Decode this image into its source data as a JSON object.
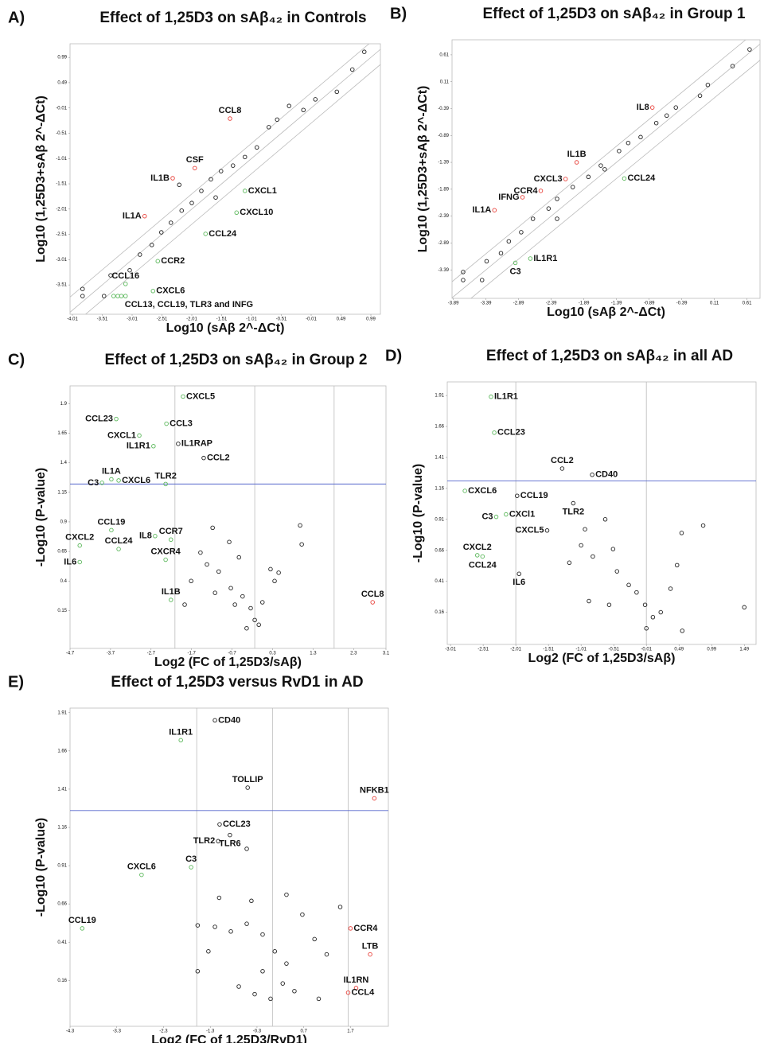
{
  "chart_data": [
    {
      "type": "scatter",
      "label": "A)",
      "title": "Effect of 1,25D3 on sAβ₄₂ in Controls",
      "xlabel": "Log10 (sAβ 2^-ΔCt)",
      "ylabel": "Log10 (1,25D3+sAβ 2^-ΔCt)",
      "xlim": [
        -4.05,
        1.15
      ],
      "ylim": [
        -4.09,
        1.26
      ],
      "xticks": [
        -4.01,
        -3.51,
        -3.01,
        -2.51,
        -2.01,
        -1.51,
        -1.01,
        -0.51,
        -0.01,
        0.49,
        0.99
      ],
      "yticks": [
        -3.51,
        -3.01,
        -2.51,
        -2.01,
        -1.51,
        -1.01,
        -0.51,
        -0.01,
        0.49,
        0.99
      ],
      "diagonals": [
        -0.3,
        0,
        0.3
      ],
      "series": [
        {
          "color": "#222222",
          "x": [
            0.88,
            0.68,
            0.42,
            0.06,
            -0.14,
            -0.38,
            -0.58,
            -0.72,
            -0.92,
            -1.12,
            -1.32,
            -1.52,
            -1.69,
            -1.85,
            -2.01,
            -2.18,
            -2.36,
            -2.52,
            -2.68,
            -2.88,
            -3.05,
            -3.37,
            -3.48,
            -3.84,
            -3.84,
            -1.61,
            -2.22
          ],
          "values": [
            1.1,
            0.75,
            0.31,
            0.16,
            -0.05,
            0.03,
            -0.24,
            -0.39,
            -0.79,
            -0.98,
            -1.15,
            -1.26,
            -1.42,
            -1.65,
            -1.89,
            -2.04,
            -2.28,
            -2.47,
            -2.72,
            -2.91,
            -3.22,
            -3.32,
            -3.73,
            -3.59,
            -3.73,
            -1.78,
            -1.53
          ]
        },
        {
          "color": "#e8423b",
          "x": [
            -1.37,
            -1.96,
            -2.33,
            -2.8
          ],
          "values": [
            -0.22,
            -1.2,
            -1.4,
            -2.15
          ],
          "labels": [
            "CCL8",
            "CSF",
            "IL1B",
            "IL1A"
          ]
        },
        {
          "color": "#5cb85c",
          "x": [
            -1.12,
            -1.26,
            -1.78,
            -2.58,
            -3.12,
            -2.66,
            -3.32,
            -3.25,
            -3.19,
            -3.12
          ],
          "values": [
            -1.65,
            -2.08,
            -2.5,
            -3.04,
            -3.49,
            -3.63,
            -3.73,
            -3.73,
            -3.73,
            -3.73
          ],
          "labels": [
            "CXCL1",
            "CXCL10",
            "CCL24",
            "CCR2",
            "CCL16",
            "CXCL6",
            "CCL13, CCL19, TLR3 and INFG",
            null,
            null,
            null
          ]
        }
      ]
    },
    {
      "type": "scatter",
      "label": "B)",
      "title": "Effect of 1,25D3 on sAβ₄₂ in Group 1",
      "xlabel": "Log10 (sAβ 2^-ΔCt)",
      "ylabel": "Log10 (1,25D3+sAβ 2^-ΔCt)",
      "xlim": [
        -3.91,
        0.81
      ],
      "ylim": [
        -3.92,
        0.89
      ],
      "xticks": [
        -3.89,
        -3.39,
        -2.89,
        -2.39,
        -1.89,
        -1.39,
        -0.89,
        -0.39,
        0.11,
        0.61
      ],
      "yticks": [
        -3.39,
        -2.89,
        -2.39,
        -1.89,
        -1.39,
        -0.89,
        -0.39,
        0.11,
        0.61
      ],
      "diagonals": [
        -0.3,
        0,
        0.3
      ],
      "series": [
        {
          "color": "#222222",
          "x": [
            0.65,
            0.39,
            0.01,
            -0.11,
            -0.48,
            -0.62,
            -0.78,
            -1.02,
            -1.21,
            -1.35,
            -1.63,
            -1.82,
            -2.06,
            -2.3,
            -2.43,
            -2.67,
            -2.85,
            -3.04,
            -3.16,
            -3.38,
            -3.74,
            -3.74,
            -3.45,
            -1.57,
            -2.3
          ],
          "values": [
            0.71,
            0.4,
            0.05,
            -0.15,
            -0.37,
            -0.52,
            -0.66,
            -0.92,
            -1.03,
            -1.18,
            -1.45,
            -1.66,
            -1.85,
            -2.07,
            -2.25,
            -2.44,
            -2.69,
            -2.86,
            -3.08,
            -3.23,
            -3.43,
            -3.58,
            -3.58,
            -1.52,
            -2.44
          ]
        },
        {
          "color": "#e8423b",
          "x": [
            -0.84,
            -2.0,
            -2.17,
            -2.55,
            -2.83,
            -3.26
          ],
          "values": [
            -0.37,
            -1.39,
            -1.7,
            -1.92,
            -2.04,
            -2.28
          ],
          "labels": [
            "IL8",
            "IL1B",
            "CXCL3",
            "CCR4",
            "IFNG",
            "IL1A"
          ]
        },
        {
          "color": "#5cb85c",
          "x": [
            -1.27,
            -2.71,
            -2.94
          ],
          "values": [
            -1.69,
            -3.18,
            -3.26
          ],
          "labels": [
            "CCL24",
            "IL1R1",
            "C3"
          ]
        }
      ]
    },
    {
      "type": "scatter",
      "label": "C)",
      "title": "Effect of 1,25D3 on sAβ₄₂ in Group 2",
      "xlabel": "Log2 (FC of 1,25D3/sAβ)",
      "ylabel": "-Log10 (P-value)",
      "xlim": [
        -4.7,
        3.1
      ],
      "ylim": [
        -0.17,
        2.05
      ],
      "xticks": [
        -4.7,
        -3.7,
        -2.7,
        -1.7,
        -0.7,
        0.3,
        1.3,
        2.3,
        3.1
      ],
      "yticks": [
        0.15,
        0.4,
        0.65,
        0.9,
        1.15,
        1.4,
        1.65,
        1.9
      ],
      "vlines": [
        -2.11,
        -0.14,
        1.82
      ],
      "hline": 1.22,
      "series": [
        {
          "color": "#222222",
          "x": [
            -1.18,
            -1.48,
            -0.77,
            -1.32,
            -1.03,
            -0.53,
            -0.73,
            -0.44,
            -0.24,
            -0.14,
            0.05,
            0.35,
            0.45,
            0.98,
            1.02,
            -1.71,
            -1.87,
            -1.12,
            -0.63,
            -0.34,
            -0.04,
            0.25
          ],
          "values": [
            0.85,
            0.64,
            0.73,
            0.54,
            0.48,
            0.6,
            0.34,
            0.27,
            0.17,
            0.07,
            0.22,
            0.4,
            0.47,
            0.87,
            0.71,
            0.4,
            0.2,
            0.3,
            0.2,
            0.0,
            0.03,
            0.5
          ]
        },
        {
          "color": "#e8423b",
          "x": [
            2.77
          ],
          "values": [
            0.22
          ],
          "labels": [
            "CCL8"
          ]
        },
        {
          "color": "#5cb85c",
          "x": [
            -1.91,
            -3.56,
            -2.32,
            -2.99,
            -2.64,
            -3.68,
            -3.91,
            -3.5,
            -2.34,
            -3.68,
            -4.46,
            -4.46,
            -3.5,
            -2.6,
            -2.21,
            -2.34,
            -2.21
          ],
          "values": [
            1.96,
            1.77,
            1.73,
            1.63,
            1.54,
            1.26,
            1.23,
            1.25,
            1.22,
            0.83,
            0.7,
            0.56,
            0.67,
            0.78,
            0.75,
            0.58,
            0.24
          ],
          "labels": [
            "CXCL5",
            "CCL23",
            "CCL3",
            "CXCL1",
            "IL1R1",
            "IL1A",
            "C3",
            "CXCL6",
            "TLR2",
            "CCL19",
            "CXCL2",
            "IL6",
            "CCL24",
            "IL8",
            "CCR7",
            "CXCR4",
            "IL1B"
          ]
        },
        {
          "color": "#222222",
          "x": [
            -2.03,
            -1.4
          ],
          "values": [
            1.56,
            1.44
          ],
          "labels": [
            "IL1RAP",
            "CCL2"
          ]
        }
      ]
    },
    {
      "type": "scatter",
      "label": "D)",
      "title": "Effect of 1,25D3 on sAβ₄₂ in all AD",
      "xlabel": "Log2 (FC of 1,25D3/sAβ)",
      "ylabel": "-Log10 (P-value)",
      "xlim": [
        -3.06,
        1.67
      ],
      "ylim": [
        -0.1,
        2.02
      ],
      "xticks": [
        -3.01,
        -2.51,
        -2.01,
        -1.51,
        -1.01,
        -0.51,
        -0.01,
        0.49,
        0.99,
        1.49
      ],
      "yticks": [
        0.16,
        0.41,
        0.66,
        0.91,
        1.16,
        1.41,
        1.66,
        1.91
      ],
      "vlines": [
        -2.01,
        -0.01
      ],
      "hline": 1.22,
      "series": [
        {
          "color": "#222222",
          "x": [
            -0.95,
            -0.64,
            -1.01,
            -1.19,
            -0.83,
            -0.52,
            -0.46,
            -0.28,
            -0.16,
            -0.03,
            -0.01,
            0.09,
            0.21,
            0.36,
            0.46,
            0.53,
            0.86,
            1.49,
            0.54,
            -0.58,
            -0.89
          ],
          "values": [
            0.83,
            0.91,
            0.7,
            0.56,
            0.61,
            0.67,
            0.49,
            0.38,
            0.32,
            0.22,
            0.03,
            0.12,
            0.16,
            0.35,
            0.54,
            0.8,
            0.86,
            0.2,
            0.01,
            0.22,
            0.25
          ]
        },
        {
          "color": "#5cb85c",
          "x": [
            -2.39,
            -2.34,
            -2.79,
            -2.31,
            -2.16,
            -2.6,
            -2.52
          ],
          "values": [
            1.9,
            1.61,
            1.14,
            0.93,
            0.95,
            0.62,
            0.61
          ],
          "labels": [
            "IL1R1",
            "CCL23",
            "CXCL6",
            "C3",
            "CXCl1",
            "CXCL2",
            "CCL24"
          ]
        },
        {
          "color": "#222222",
          "x": [
            -1.3,
            -0.84,
            -1.99,
            -1.13,
            -1.53,
            -1.96
          ],
          "values": [
            1.32,
            1.27,
            1.1,
            1.04,
            0.82,
            0.47
          ],
          "labels": [
            "CCL2",
            "CD40",
            "CCL19",
            "TLR2",
            "CXCL5",
            "IL6"
          ]
        }
      ]
    },
    {
      "type": "scatter",
      "label": "E)",
      "title": "Effect of 1,25D3 versus RvD1 in AD",
      "xlabel": "Log2 (FC of 1,25D3/RvD1)",
      "ylabel": "-Log10 (P-value)",
      "xlim": [
        -4.3,
        2.51
      ],
      "ylim": [
        -0.14,
        1.94
      ],
      "xticks": [
        -4.3,
        -3.3,
        -2.3,
        -1.3,
        -0.3,
        0.7,
        1.7
      ],
      "yticks": [
        0.16,
        0.41,
        0.66,
        0.91,
        1.16,
        1.41,
        1.66,
        1.91
      ],
      "vlines": [
        -1.59,
        0.03,
        1.65
      ],
      "hline": 1.27,
      "series": [
        {
          "color": "#222222",
          "x": [
            -0.52,
            0.33,
            1.48,
            -0.42,
            -1.11,
            -1.57,
            -1.2,
            -0.86,
            -0.52,
            -0.18,
            0.08,
            0.33,
            0.67,
            0.93,
            1.19,
            -0.69,
            -0.35,
            -0.01,
            0.5,
            1.02,
            -1.34,
            -1.57,
            -0.18,
            0.25
          ],
          "values": [
            1.02,
            0.72,
            0.64,
            0.68,
            0.7,
            0.52,
            0.51,
            0.48,
            0.53,
            0.46,
            0.35,
            0.27,
            0.59,
            0.43,
            0.33,
            0.12,
            0.07,
            0.04,
            0.09,
            0.04,
            0.35,
            0.22,
            0.22,
            0.14
          ]
        },
        {
          "color": "#e8423b",
          "x": [
            2.21,
            1.7,
            2.12,
            1.82,
            1.65
          ],
          "values": [
            1.35,
            0.5,
            0.33,
            0.11,
            0.08
          ],
          "labels": [
            "NFKB1",
            "CCR4",
            "LTB",
            "IL1RN",
            "CCL4"
          ]
        },
        {
          "color": "#5cb85c",
          "x": [
            -1.93,
            -1.71,
            -2.77,
            -4.04
          ],
          "values": [
            1.73,
            0.9,
            0.85,
            0.5
          ],
          "labels": [
            "IL1R1",
            "C3",
            "CXCL6",
            "CCL19"
          ]
        },
        {
          "color": "#222222",
          "x": [
            -1.2,
            -0.5,
            -1.1,
            -0.88,
            -1.13
          ],
          "values": [
            1.86,
            1.42,
            1.18,
            1.11,
            1.07
          ],
          "labels": [
            "CD40",
            "TOLLIP",
            "CCL23",
            "TLR6",
            "TLR2"
          ]
        }
      ]
    }
  ]
}
